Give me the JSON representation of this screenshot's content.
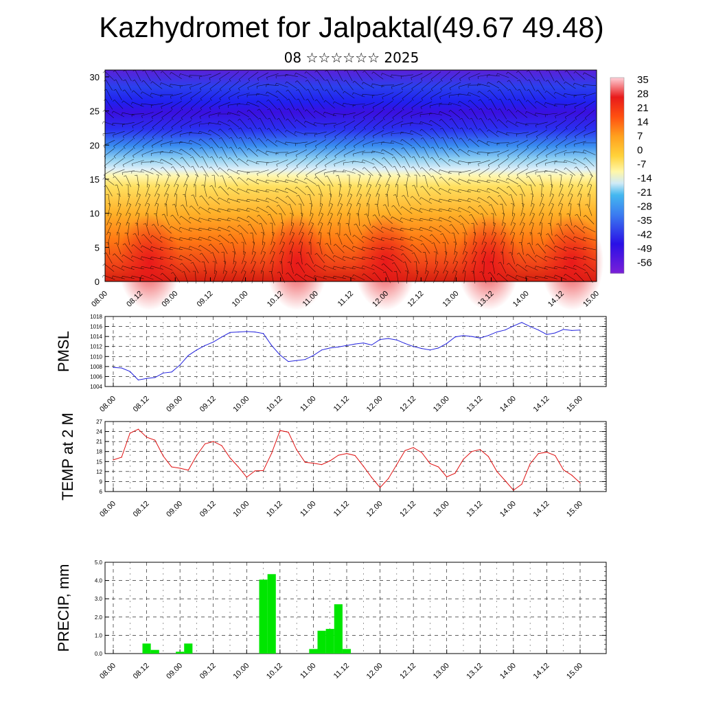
{
  "header": {
    "title": "Kazhydromet for Jalpaktal(49.67 49.48)",
    "subtitle": "08 ☆☆☆☆☆☆ 2025"
  },
  "chart_data": [
    {
      "type": "heatmap",
      "title": "",
      "x_ticks": [
        "08.00",
        "08.12",
        "09.00",
        "09.12",
        "10.00",
        "10.12",
        "11.00",
        "11.12",
        "12.00",
        "12.12",
        "13.00",
        "13.12",
        "14.00",
        "14.12",
        "15.00"
      ],
      "y_ticks": [
        "0",
        "5",
        "10",
        "15",
        "20",
        "25",
        "30"
      ],
      "ylim": [
        0,
        31
      ],
      "colorbar_labels": [
        "35",
        "28",
        "21",
        "14",
        "7",
        "0",
        "-7",
        "-14",
        "-21",
        "-28",
        "-35",
        "-42",
        "-49",
        "-56"
      ],
      "colormap": [
        "#7a1fd8",
        "#2a10e6",
        "#2030ff",
        "#3b7cf0",
        "#44b8f0",
        "#bfe4f5",
        "#fff7a8",
        "#ffd23a",
        "#ffa01e",
        "#ff6a10",
        "#f0401a",
        "#e81a1a",
        "#f8a0a8",
        "#ffd0d8"
      ],
      "vectors": "wind barbs overlay"
    },
    {
      "type": "line",
      "ylabel": "PMSL",
      "color": "#2020dd",
      "y_ticks": [
        "1004",
        "1006",
        "1008",
        "1010",
        "1012",
        "1014",
        "1016",
        "1018"
      ],
      "ylim": [
        1004,
        1018
      ],
      "x_ticks": [
        "08.00",
        "08.12",
        "09.00",
        "09.12",
        "10.00",
        "10.12",
        "11.00",
        "11.12",
        "12.00",
        "12.12",
        "13.00",
        "13.12",
        "14.00",
        "14.12",
        "15.00"
      ],
      "values": [
        1007.8,
        1007.7,
        1007.0,
        1005.3,
        1005.6,
        1005.8,
        1006.7,
        1006.9,
        1008.3,
        1010.2,
        1011.3,
        1012.2,
        1012.9,
        1013.9,
        1014.8,
        1014.9,
        1015.0,
        1014.9,
        1014.6,
        1012.2,
        1010.3,
        1009.0,
        1009.2,
        1009.4,
        1010.2,
        1011.3,
        1011.7,
        1011.9,
        1012.2,
        1012.5,
        1012.7,
        1012.3,
        1013.4,
        1013.6,
        1013.3,
        1012.6,
        1012.0,
        1011.6,
        1011.3,
        1011.7,
        1012.6,
        1013.9,
        1014.2,
        1014.0,
        1013.7,
        1014.2,
        1014.9,
        1015.3,
        1016.1,
        1016.8,
        1016.0,
        1015.3,
        1014.4,
        1014.7,
        1015.4,
        1015.2,
        1015.3
      ]
    },
    {
      "type": "line",
      "ylabel": "TEMP at 2 M",
      "color": "#e01010",
      "y_ticks": [
        "6",
        "9",
        "12",
        "15",
        "18",
        "21",
        "24",
        "27"
      ],
      "ylim": [
        6,
        27
      ],
      "x_ticks": [
        "08.00",
        "08.12",
        "09.00",
        "09.12",
        "10.00",
        "10.12",
        "11.00",
        "11.12",
        "12.00",
        "12.12",
        "13.00",
        "13.12",
        "14.00",
        "14.12",
        "15.00"
      ],
      "values": [
        15.5,
        16.3,
        23.5,
        24.7,
        22.3,
        21.4,
        16.6,
        13.4,
        13.0,
        12.4,
        16.8,
        20.3,
        21.0,
        19.8,
        16.1,
        13.4,
        10.3,
        12.2,
        12.3,
        17.5,
        24.3,
        23.8,
        18.5,
        14.8,
        14.5,
        14.1,
        15.2,
        16.9,
        17.4,
        16.8,
        13.6,
        10.2,
        7.2,
        9.9,
        14.1,
        18.3,
        19.2,
        17.7,
        14.4,
        13.4,
        10.4,
        11.5,
        15.7,
        18.0,
        18.6,
        16.5,
        12.1,
        9.3,
        6.4,
        8.2,
        14.3,
        17.4,
        17.8,
        16.8,
        12.5,
        10.9,
        8.6
      ]
    },
    {
      "type": "bar",
      "ylabel": "PRECIP, mm",
      "color": "#00e600",
      "y_ticks": [
        "0.0",
        "1.0",
        "2.0",
        "3.0",
        "4.0",
        "5.0"
      ],
      "ylim": [
        0,
        5
      ],
      "x_ticks": [
        "08.00",
        "08.12",
        "09.00",
        "09.12",
        "10.00",
        "10.12",
        "11.00",
        "11.12",
        "12.00",
        "12.12",
        "13.00",
        "13.12",
        "14.00",
        "14.12",
        "15.00"
      ],
      "values": [
        0,
        0,
        0,
        0,
        0.55,
        0.2,
        0,
        0,
        0.1,
        0.55,
        0,
        0,
        0,
        0,
        0,
        0,
        0,
        0,
        4.05,
        4.35,
        0,
        0,
        0,
        0,
        0.25,
        1.25,
        1.35,
        2.7,
        0.25,
        0,
        0,
        0,
        0,
        0,
        0,
        0,
        0,
        0,
        0,
        0,
        0,
        0,
        0,
        0,
        0,
        0,
        0,
        0,
        0,
        0,
        0,
        0,
        0,
        0,
        0,
        0,
        0
      ]
    }
  ]
}
